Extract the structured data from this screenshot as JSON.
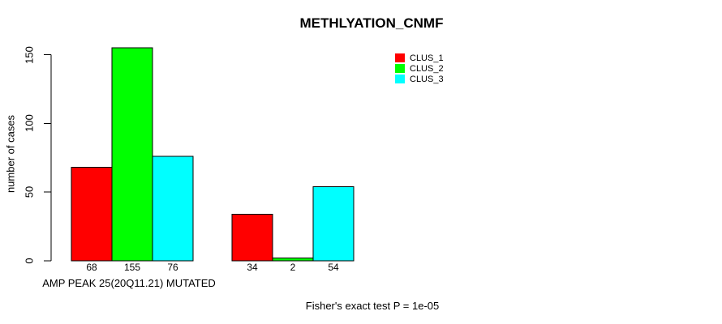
{
  "chart_data": {
    "type": "bar",
    "title": "METHLYATION_CNMF",
    "ylabel": "number of cases",
    "xlabel": "AMP PEAK 25(20Q11.21) MUTATED",
    "caption": "Fisher's exact test P = 1e-05",
    "ylim": [
      0,
      155
    ],
    "yticks": [
      0,
      50,
      100,
      150
    ],
    "grid": false,
    "legend_position": "top-right",
    "series": [
      {
        "name": "CLUS_1",
        "color": "#FF0000"
      },
      {
        "name": "CLUS_2",
        "color": "#00FF00"
      },
      {
        "name": "CLUS_3",
        "color": "#00FFFF"
      }
    ],
    "groups": [
      {
        "label": "AMP PEAK 25(20Q11.21) MUTATED",
        "values": [
          68,
          155,
          76
        ]
      },
      {
        "label": "",
        "values": [
          34,
          2,
          54
        ]
      }
    ],
    "bar_outline_color": "#000000",
    "axis_color": "#000000"
  }
}
